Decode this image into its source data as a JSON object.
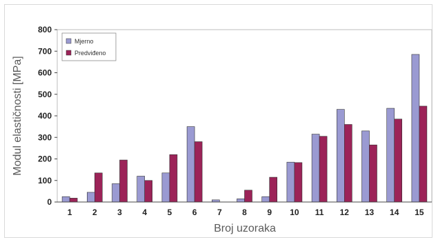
{
  "chart_data": {
    "type": "bar",
    "title": "",
    "xlabel": "Broj uzoraka",
    "ylabel": "Modul elastičnosti [MPa]",
    "ylim": [
      0,
      800
    ],
    "yticks": [
      0,
      100,
      200,
      300,
      400,
      500,
      600,
      700,
      800
    ],
    "categories": [
      "1",
      "2",
      "3",
      "4",
      "5",
      "6",
      "7",
      "8",
      "9",
      "10",
      "11",
      "12",
      "13",
      "14",
      "15"
    ],
    "series": [
      {
        "name": "Mjerno",
        "color": "#9a9ad2",
        "values": [
          25,
          45,
          85,
          120,
          135,
          350,
          10,
          15,
          25,
          185,
          315,
          430,
          330,
          435,
          685
        ]
      },
      {
        "name": "Predviđeno",
        "color": "#9c2358",
        "values": [
          18,
          135,
          195,
          100,
          220,
          280,
          0,
          55,
          115,
          183,
          305,
          360,
          265,
          385,
          445
        ]
      }
    ],
    "grid": false,
    "legend": "top-left"
  }
}
